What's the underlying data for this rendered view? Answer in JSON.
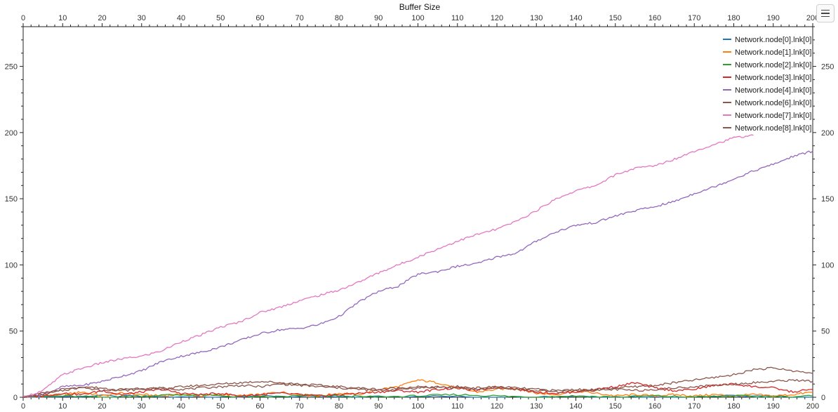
{
  "chart_data": {
    "type": "line",
    "title": "Buffer Size",
    "xlabel": "",
    "ylabel": "",
    "xlim": [
      0,
      200
    ],
    "ylim": [
      0,
      280
    ],
    "x_ticks": [
      0,
      10,
      20,
      30,
      40,
      50,
      60,
      70,
      80,
      90,
      100,
      110,
      120,
      130,
      140,
      150,
      160,
      170,
      180,
      190,
      200
    ],
    "y_ticks": [
      0,
      50,
      100,
      150,
      200,
      250
    ],
    "grid": true,
    "legend_position": "top-right",
    "series": [
      {
        "name": "Network.node[0].lnk[0]",
        "color": "#1f77b4",
        "x": [
          0,
          20,
          40,
          60,
          80,
          100,
          120,
          140,
          160,
          180,
          200
        ],
        "y": [
          0,
          1,
          0,
          1,
          0,
          1,
          0,
          1,
          0,
          1,
          0
        ]
      },
      {
        "name": "Network.node[1].lnk[0]",
        "color": "#ff7f0e",
        "x": [
          0,
          5,
          10,
          15,
          20,
          25,
          30,
          35,
          40,
          45,
          50,
          55,
          60,
          65,
          70,
          75,
          80,
          85,
          90,
          95,
          100,
          105,
          110,
          115,
          120,
          125,
          130,
          135,
          140,
          145,
          150,
          155,
          160,
          165,
          170,
          175,
          180,
          185,
          190,
          195,
          200
        ],
        "y": [
          0,
          1,
          2,
          4,
          1,
          3,
          2,
          1,
          2,
          1,
          2,
          1,
          2,
          4,
          2,
          1,
          3,
          2,
          6,
          8,
          13,
          11,
          7,
          4,
          6,
          7,
          3,
          2,
          5,
          3,
          1,
          2,
          1,
          2,
          1,
          2,
          1,
          2,
          1,
          2,
          4
        ]
      },
      {
        "name": "Network.node[2].lnk[0]",
        "color": "#2ca02c",
        "x": [
          0,
          10,
          20,
          30,
          40,
          50,
          60,
          70,
          80,
          90,
          100,
          110,
          120,
          130,
          140,
          150,
          160,
          170,
          180,
          190,
          200
        ],
        "y": [
          0,
          1,
          0,
          1,
          2,
          1,
          0,
          1,
          1,
          0,
          1,
          2,
          1,
          0,
          1,
          0,
          1,
          0,
          1,
          0,
          1
        ]
      },
      {
        "name": "Network.node[3].lnk[0]",
        "color": "#d62728",
        "x": [
          0,
          5,
          10,
          15,
          20,
          25,
          30,
          35,
          40,
          45,
          50,
          55,
          60,
          65,
          70,
          75,
          80,
          85,
          90,
          95,
          100,
          105,
          110,
          115,
          120,
          125,
          130,
          135,
          140,
          145,
          150,
          155,
          160,
          165,
          170,
          175,
          180,
          185,
          190,
          195,
          200
        ],
        "y": [
          0,
          1,
          3,
          2,
          5,
          2,
          4,
          6,
          3,
          2,
          3,
          1,
          2,
          3,
          2,
          1,
          2,
          3,
          4,
          5,
          4,
          6,
          7,
          5,
          8,
          6,
          4,
          3,
          4,
          6,
          8,
          11,
          7,
          5,
          6,
          9,
          10,
          8,
          7,
          4,
          6
        ]
      },
      {
        "name": "Network.node[4].lnk[0]",
        "color": "#9467bd",
        "x": [
          0,
          5,
          10,
          15,
          20,
          25,
          30,
          35,
          40,
          45,
          50,
          55,
          60,
          65,
          70,
          75,
          80,
          85,
          90,
          95,
          100,
          105,
          110,
          115,
          120,
          125,
          130,
          135,
          140,
          145,
          150,
          155,
          160,
          165,
          170,
          175,
          180,
          185,
          190,
          195,
          200
        ],
        "y": [
          0,
          2,
          8,
          9,
          12,
          16,
          20,
          27,
          31,
          34,
          38,
          43,
          48,
          51,
          52,
          55,
          61,
          72,
          80,
          84,
          93,
          95,
          99,
          101,
          106,
          109,
          118,
          125,
          130,
          132,
          137,
          141,
          144,
          148,
          154,
          159,
          165,
          171,
          176,
          182,
          186
        ]
      },
      {
        "name": "Network.node[6].lnk[0]",
        "color": "#8c564b",
        "x": [
          0,
          5,
          10,
          15,
          20,
          25,
          30,
          35,
          40,
          45,
          50,
          55,
          60,
          65,
          70,
          75,
          80,
          85,
          90,
          95,
          100,
          105,
          110,
          115,
          120,
          125,
          130,
          135,
          140,
          145,
          150,
          155,
          160,
          165,
          170,
          175,
          180,
          185,
          190,
          195,
          200
        ],
        "y": [
          0,
          3,
          6,
          7,
          5,
          6,
          7,
          6,
          8,
          9,
          10,
          11,
          12,
          11,
          10,
          9,
          8,
          7,
          6,
          7,
          8,
          7,
          8,
          7,
          8,
          7,
          6,
          5,
          6,
          5,
          6,
          5,
          6,
          7,
          8,
          9,
          10,
          11,
          12,
          13,
          12
        ]
      },
      {
        "name": "Network.node[7].lnk[0]",
        "color": "#e377c2",
        "x": [
          0,
          5,
          10,
          15,
          20,
          25,
          30,
          35,
          40,
          45,
          50,
          55,
          60,
          65,
          70,
          75,
          80,
          85,
          90,
          95,
          100,
          105,
          110,
          115,
          120,
          125,
          130,
          135,
          140,
          145,
          150,
          155,
          160,
          165,
          170,
          175,
          180,
          185
        ],
        "y": [
          0,
          5,
          17,
          22,
          26,
          29,
          31,
          35,
          42,
          47,
          53,
          57,
          64,
          68,
          73,
          77,
          81,
          87,
          94,
          100,
          106,
          112,
          118,
          123,
          127,
          133,
          141,
          150,
          156,
          160,
          168,
          173,
          175,
          180,
          186,
          191,
          196,
          198
        ]
      },
      {
        "name": "Network.node[8].lnk[0]",
        "color": "#8c564b",
        "x": [
          0,
          5,
          10,
          15,
          20,
          25,
          30,
          35,
          40,
          45,
          50,
          55,
          60,
          65,
          70,
          75,
          80,
          85,
          90,
          95,
          100,
          105,
          110,
          115,
          120,
          125,
          130,
          135,
          140,
          145,
          150,
          155,
          160,
          165,
          170,
          175,
          180,
          185,
          190,
          195,
          200
        ],
        "y": [
          0,
          2,
          5,
          8,
          7,
          5,
          6,
          7,
          6,
          7,
          8,
          9,
          8,
          10,
          9,
          8,
          7,
          6,
          5,
          6,
          7,
          8,
          7,
          6,
          7,
          6,
          5,
          4,
          5,
          6,
          7,
          8,
          9,
          11,
          13,
          15,
          17,
          21,
          22,
          20,
          18
        ]
      }
    ]
  }
}
